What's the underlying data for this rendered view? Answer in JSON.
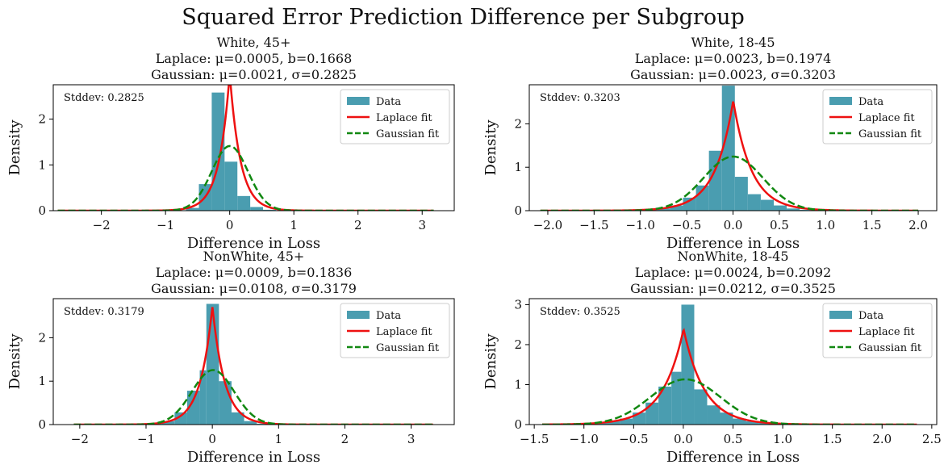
{
  "figure_title": "Squared Error Prediction Difference per Subgroup",
  "colors": {
    "bars": "#4a9db0",
    "laplace": "#ee1111",
    "gaussian": "#118811"
  },
  "chart_data": [
    {
      "type": "histogram",
      "title": [
        "White, 45+",
        "Laplace: μ=0.0005, b=0.1668",
        "Gaussian: μ=0.0021, σ=0.2825"
      ],
      "xlabel": "Difference in Loss",
      "ylabel": "Density",
      "stddev_label": "Stddev: 0.2825",
      "xlim": [
        -2.75,
        3.5
      ],
      "ylim": [
        0,
        2.75
      ],
      "xticks": [
        -2,
        -1,
        0,
        1,
        2,
        3
      ],
      "xtick_labels": [
        "−2",
        "−1",
        "0",
        "1",
        "2",
        "3"
      ],
      "yticks": [
        0,
        1,
        2
      ],
      "ytick_labels": [
        "0",
        "1",
        "2"
      ],
      "bins": {
        "edges": [
          -2.68,
          -2.48,
          -2.28,
          -2.08,
          -1.88,
          -1.68,
          -1.48,
          -1.28,
          -1.08,
          -0.88,
          -0.68,
          -0.48,
          -0.28,
          -0.08,
          0.12,
          0.32,
          0.52,
          0.72,
          0.92,
          1.12,
          1.32,
          1.52,
          1.72,
          1.92,
          2.12,
          2.32,
          2.52,
          2.72,
          2.92,
          3.12
        ],
        "densities": [
          0,
          0,
          0,
          0,
          0,
          0,
          0,
          0,
          0,
          0.01,
          0.06,
          0.58,
          2.58,
          1.07,
          0.32,
          0.08,
          0.02,
          0.01,
          0,
          0,
          0,
          0,
          0,
          0,
          0,
          0,
          0,
          0,
          0
        ]
      },
      "laplace": {
        "mu": 0.0005,
        "b": 0.1668
      },
      "gaussian": {
        "mu": 0.0021,
        "sigma": 0.2825
      },
      "curve_range": [
        -2.68,
        3.18
      ],
      "legend": [
        "Data",
        "Laplace fit",
        "Gaussian fit"
      ]
    },
    {
      "type": "histogram",
      "title": [
        "White, 18-45",
        "Laplace: μ=0.0023, b=0.1974",
        "Gaussian: μ=0.0023, σ=0.3203"
      ],
      "xlabel": "Difference in Loss",
      "ylabel": "Density",
      "stddev_label": "Stddev: 0.3203",
      "xlim": [
        -2.2,
        2.2
      ],
      "ylim": [
        0,
        2.9
      ],
      "xticks": [
        -2.0,
        -1.5,
        -1.0,
        -0.5,
        0.0,
        0.5,
        1.0,
        1.5,
        2.0
      ],
      "xtick_labels": [
        "−2.0",
        "−1.5",
        "−1.0",
        "−0.5",
        "0.0",
        "0.5",
        "1.0",
        "1.5",
        "2.0"
      ],
      "yticks": [
        0,
        1,
        2
      ],
      "ytick_labels": [
        "0",
        "1",
        "2"
      ],
      "bins": {
        "edges": [
          -2.08,
          -1.94,
          -1.8,
          -1.66,
          -1.52,
          -1.38,
          -1.24,
          -1.1,
          -0.96,
          -0.82,
          -0.68,
          -0.54,
          -0.4,
          -0.26,
          -0.12,
          0.02,
          0.16,
          0.3,
          0.44,
          0.58,
          0.72,
          0.86,
          1.0,
          1.14,
          1.28,
          1.42,
          1.56,
          1.7,
          1.84,
          1.98
        ],
        "densities": [
          0,
          0,
          0,
          0,
          0,
          0,
          0,
          0.01,
          0.02,
          0.05,
          0.12,
          0.3,
          0.58,
          1.38,
          2.88,
          0.78,
          0.38,
          0.25,
          0.12,
          0.05,
          0.02,
          0.01,
          0,
          0,
          0,
          0,
          0,
          0,
          0
        ]
      },
      "laplace": {
        "mu": 0.0023,
        "b": 0.1974
      },
      "gaussian": {
        "mu": 0.0023,
        "sigma": 0.3203
      },
      "curve_range": [
        -2.08,
        2.0
      ],
      "legend": [
        "Data",
        "Laplace fit",
        "Gaussian fit"
      ]
    },
    {
      "type": "histogram",
      "title": [
        "NonWhite, 45+",
        "Laplace: μ=0.0009, b=0.1836",
        "Gaussian: μ=0.0108, σ=0.3179"
      ],
      "xlabel": "Difference in Loss",
      "ylabel": "Density",
      "stddev_label": "Stddev: 0.3179",
      "xlim": [
        -2.4,
        3.65
      ],
      "ylim": [
        0,
        2.9
      ],
      "xticks": [
        -2,
        -1,
        0,
        1,
        2,
        3
      ],
      "xtick_labels": [
        "−2",
        "−1",
        "0",
        "1",
        "2",
        "3"
      ],
      "yticks": [
        0,
        1,
        2
      ],
      "ytick_labels": [
        "0",
        "1",
        "2"
      ],
      "bins": {
        "edges": [
          -2.09,
          -1.9,
          -1.71,
          -1.52,
          -1.33,
          -1.14,
          -0.95,
          -0.76,
          -0.57,
          -0.38,
          -0.19,
          -0.09,
          0.1,
          0.29,
          0.48,
          0.67,
          0.86,
          1.05,
          1.24,
          1.43,
          1.62,
          1.81,
          2.0,
          2.19,
          2.38,
          2.57,
          2.76,
          2.95,
          3.14,
          3.33
        ],
        "densities": [
          0,
          0,
          0,
          0,
          0,
          0,
          0.02,
          0.08,
          0.28,
          0.78,
          1.25,
          2.78,
          1.0,
          0.28,
          0.08,
          0.02,
          0.01,
          0,
          0,
          0,
          0,
          0,
          0,
          0,
          0,
          0,
          0,
          0,
          0
        ]
      },
      "laplace": {
        "mu": 0.0009,
        "b": 0.1836
      },
      "gaussian": {
        "mu": 0.0108,
        "sigma": 0.3179
      },
      "curve_range": [
        -2.09,
        3.33
      ],
      "legend": [
        "Data",
        "Laplace fit",
        "Gaussian fit"
      ]
    },
    {
      "type": "histogram",
      "title": [
        "NonWhite, 18-45",
        "Laplace: μ=0.0024, b=0.2092",
        "Gaussian: μ=0.0212, σ=0.3525"
      ],
      "xlabel": "Difference in Loss",
      "ylabel": "Density",
      "stddev_label": "Stddev: 0.3525",
      "xlim": [
        -1.55,
        2.55
      ],
      "ylim": [
        0,
        3.15
      ],
      "xticks": [
        -1.5,
        -1.0,
        -0.5,
        0.0,
        0.5,
        1.0,
        1.5,
        2.0,
        2.5
      ],
      "xtick_labels": [
        "−1.5",
        "−1.0",
        "−0.5",
        "0.0",
        "0.5",
        "1.0",
        "1.5",
        "2.0",
        "2.5"
      ],
      "yticks": [
        0,
        1,
        2,
        3
      ],
      "ytick_labels": [
        "0",
        "1",
        "2",
        "3"
      ],
      "bins": {
        "edges": [
          -1.42,
          -1.29,
          -1.16,
          -1.03,
          -0.9,
          -0.77,
          -0.64,
          -0.51,
          -0.38,
          -0.25,
          -0.12,
          -0.02,
          0.11,
          0.24,
          0.37,
          0.5,
          0.63,
          0.76,
          0.89,
          1.02,
          1.15,
          1.28,
          1.41,
          1.54,
          1.67,
          1.8,
          1.93,
          2.06,
          2.19,
          2.32
        ],
        "densities": [
          0,
          0,
          0.01,
          0.02,
          0.04,
          0.08,
          0.15,
          0.3,
          0.55,
          0.95,
          1.32,
          3.0,
          0.88,
          0.48,
          0.3,
          0.15,
          0.08,
          0.04,
          0.02,
          0.01,
          0,
          0,
          0,
          0,
          0,
          0,
          0,
          0,
          0
        ]
      },
      "laplace": {
        "mu": 0.0024,
        "b": 0.2092
      },
      "gaussian": {
        "mu": 0.0212,
        "sigma": 0.3525
      },
      "curve_range": [
        -1.42,
        2.35
      ],
      "legend": [
        "Data",
        "Laplace fit",
        "Gaussian fit"
      ]
    }
  ]
}
